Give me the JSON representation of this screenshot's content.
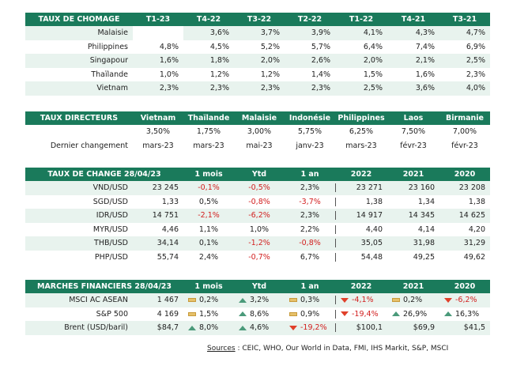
{
  "unemployment": {
    "title": "TAUX DE CHÔMAGE",
    "columns": [
      "T1-23",
      "T4-22",
      "T3-22",
      "T2-22",
      "T1-22",
      "T4-21",
      "T3-21"
    ],
    "rows": [
      {
        "label": "Malaisie",
        "values": [
          "",
          "3,6%",
          "3,7%",
          "3,9%",
          "4,1%",
          "4,3%",
          "4,7%"
        ]
      },
      {
        "label": "Philippines",
        "values": [
          "4,8%",
          "4,5%",
          "5,2%",
          "5,7%",
          "6,4%",
          "7,4%",
          "6,9%"
        ]
      },
      {
        "label": "Singapour",
        "values": [
          "1,6%",
          "1,8%",
          "2,0%",
          "2,6%",
          "2,0%",
          "2,1%",
          "2,5%"
        ]
      },
      {
        "label": "Thaïlande",
        "values": [
          "1,0%",
          "1,2%",
          "1,2%",
          "1,4%",
          "1,5%",
          "1,6%",
          "2,3%"
        ]
      },
      {
        "label": "Vietnam",
        "values": [
          "2,3%",
          "2,3%",
          "2,3%",
          "2,3%",
          "2,5%",
          "3,6%",
          "4,0%"
        ]
      }
    ]
  },
  "policy_rates": {
    "title": "TAUX DIRECTEURS",
    "columns": [
      "Vietnam",
      "Thaïlande",
      "Malaisie",
      "Indonésie",
      "Philippines",
      "Laos",
      "Birmanie"
    ],
    "rates": [
      "3,50%",
      "1,75%",
      "3,00%",
      "5,75%",
      "6,25%",
      "7,50%",
      "7,00%"
    ],
    "last_change_label": "Dernier changement",
    "last_change": [
      "mars-23",
      "mars-23",
      "mai-23",
      "janv-23",
      "mars-23",
      "févr-23",
      "févr-23"
    ]
  },
  "fx": {
    "title": "TAUX DE CHANGE 28/04/23",
    "columns": [
      "1 mois",
      "Ytd",
      "1 an",
      "2022",
      "2021",
      "2020"
    ],
    "rows": [
      {
        "label": "VND/USD",
        "spot": "23 245",
        "m1": "-0,1%",
        "ytd": "-0,5%",
        "y1": "2,3%",
        "y2022": "23 271",
        "y2021": "23 160",
        "y2020": "23 208"
      },
      {
        "label": "SGD/USD",
        "spot": "1,33",
        "m1": "0,5%",
        "ytd": "-0,8%",
        "y1": "-3,7%",
        "y2022": "1,38",
        "y2021": "1,34",
        "y2020": "1,38"
      },
      {
        "label": "IDR/USD",
        "spot": "14 751",
        "m1": "-2,1%",
        "ytd": "-6,2%",
        "y1": "2,3%",
        "y2022": "14 917",
        "y2021": "14 345",
        "y2020": "14 625"
      },
      {
        "label": "MYR/USD",
        "spot": "4,46",
        "m1": "1,1%",
        "ytd": "1,0%",
        "y1": "2,2%",
        "y2022": "4,40",
        "y2021": "4,14",
        "y2020": "4,20"
      },
      {
        "label": "THB/USD",
        "spot": "34,14",
        "m1": "0,1%",
        "ytd": "-1,2%",
        "y1": "-0,8%",
        "y2022": "35,05",
        "y2021": "31,98",
        "y2020": "31,29"
      },
      {
        "label": "PHP/USD",
        "spot": "55,74",
        "m1": "2,4%",
        "ytd": "-0,7%",
        "y1": "6,7%",
        "y2022": "54,48",
        "y2021": "49,25",
        "y2020": "49,62"
      }
    ]
  },
  "markets": {
    "title": "MARCHÉS FINANCIERS 28/04/23",
    "columns": [
      "1 mois",
      "Ytd",
      "1 an",
      "2022",
      "2021",
      "2020"
    ],
    "rows": [
      {
        "label": "MSCI AC ASEAN",
        "spot": "1 467",
        "m1": {
          "v": "0,2%",
          "t": "flat"
        },
        "ytd": {
          "v": "3,2%",
          "t": "up"
        },
        "y1": {
          "v": "0,3%",
          "t": "flat"
        },
        "y2022": {
          "v": "-4,1%",
          "t": "down"
        },
        "y2021": {
          "v": "0,2%",
          "t": "flat"
        },
        "y2020": {
          "v": "-6,2%",
          "t": "down"
        }
      },
      {
        "label": "S&P 500",
        "spot": "4 169",
        "m1": {
          "v": "1,5%",
          "t": "flat"
        },
        "ytd": {
          "v": "8,6%",
          "t": "up"
        },
        "y1": {
          "v": "0,9%",
          "t": "flat"
        },
        "y2022": {
          "v": "-19,4%",
          "t": "down"
        },
        "y2021": {
          "v": "26,9%",
          "t": "up"
        },
        "y2020": {
          "v": "16,3%",
          "t": "up"
        }
      },
      {
        "label": "Brent (USD/baril)",
        "spot": "$84,7",
        "m1": {
          "v": "8,0%",
          "t": "up"
        },
        "ytd": {
          "v": "4,6%",
          "t": "up"
        },
        "y1": {
          "v": "-19,2%",
          "t": "down"
        },
        "y2022": {
          "v": "$100,1",
          "t": "none"
        },
        "y2021": {
          "v": "$69,9",
          "t": "none"
        },
        "y2020": {
          "v": "$41,5",
          "t": "none"
        }
      }
    ]
  },
  "sources": {
    "label": "Sources",
    "text": " : CEIC, WHO, Our World in Data, FMI, IHS Markit, S&P, MSCI"
  }
}
